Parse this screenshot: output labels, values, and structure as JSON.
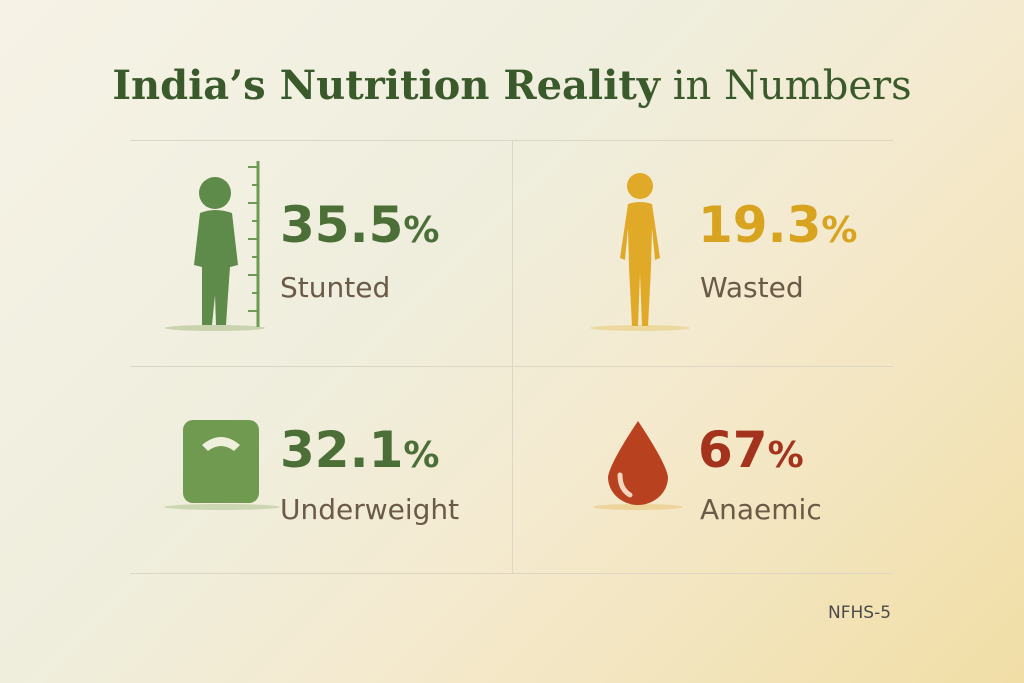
{
  "title": {
    "emphasis": "India’s Nutrition Reality",
    "rest": "in Numbers"
  },
  "stats": [
    {
      "value": "35.5",
      "unit": "%",
      "label": "Stunted"
    },
    {
      "value": "19.3",
      "unit": "%",
      "label": "Wasted"
    },
    {
      "value": "32.1",
      "unit": "%",
      "label": "Underweight"
    },
    {
      "value": "67",
      "unit": "%",
      "label": "Anaemic"
    }
  ],
  "source": "NFHS-5"
}
